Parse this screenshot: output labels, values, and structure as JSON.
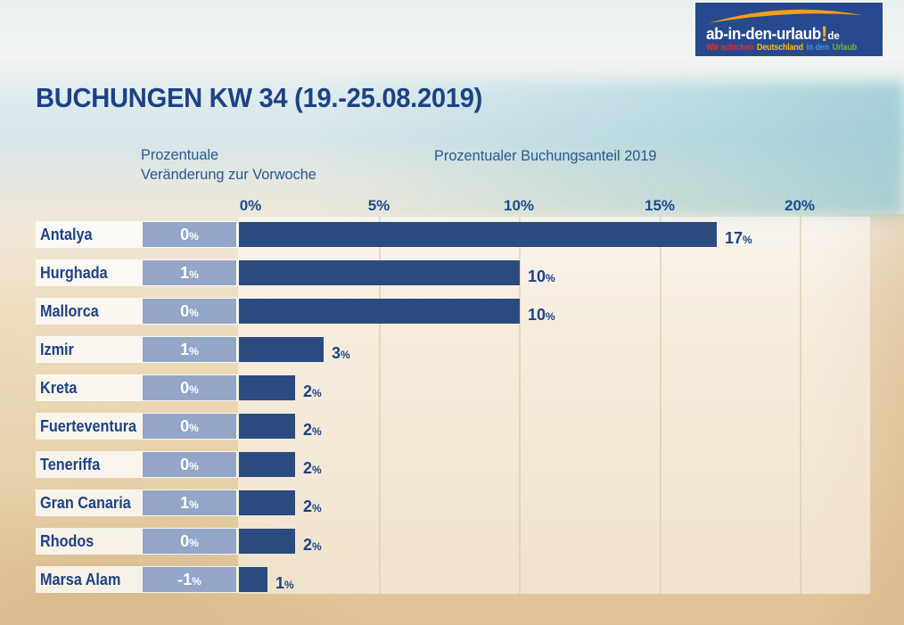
{
  "logo": {
    "brand": "ab-in-den-urlaub",
    "brand_exclaim": "!",
    "brand_tld": "de",
    "tagline": [
      {
        "text": "Wir schicken",
        "color": "#e23028"
      },
      {
        "text": "Deutschland",
        "color": "#f7c100"
      },
      {
        "text": "in den",
        "color": "#3f93d4"
      },
      {
        "text": "Urlaub",
        "color": "#72b844"
      }
    ],
    "background_color": "#27498e",
    "swoosh_color": "#f59e18"
  },
  "title": "BUCHUNGEN KW 34 (19.-25.08.2019)",
  "chart_data": {
    "type": "bar",
    "orientation": "horizontal",
    "title": "BUCHUNGEN KW 34 (19.-25.08.2019)",
    "col1_header": "Prozentuale\nVeränderung zur Vorwoche",
    "col2_header": "Prozentualer Buchungsanteil 2019",
    "categories": [
      "Antalya",
      "Hurghada",
      "Mallorca",
      "Izmir",
      "Kreta",
      "Fuerteventura",
      "Teneriffa",
      "Gran Canaria",
      "Rhodos",
      "Marsa Alam"
    ],
    "series": [
      {
        "name": "Prozentuale Veränderung zur Vorwoche",
        "display": "badge",
        "values": [
          0,
          1,
          0,
          1,
          0,
          0,
          0,
          1,
          0,
          -1
        ]
      },
      {
        "name": "Prozentualer Buchungsanteil 2019",
        "display": "bar",
        "values": [
          17,
          10,
          10,
          3,
          2,
          2,
          2,
          2,
          2,
          1
        ]
      }
    ],
    "unit": "%",
    "x_ticks": [
      0,
      5,
      10,
      15,
      20
    ],
    "x_tick_labels": [
      "0%",
      "5%",
      "10%",
      "15%",
      "20%"
    ],
    "xlim": [
      0,
      22.5
    ],
    "grid": "vertical",
    "legend_position": "none",
    "bar_color": "#2b4b80",
    "badge_color": "#93a6c8",
    "text_color": "#1d4284"
  }
}
